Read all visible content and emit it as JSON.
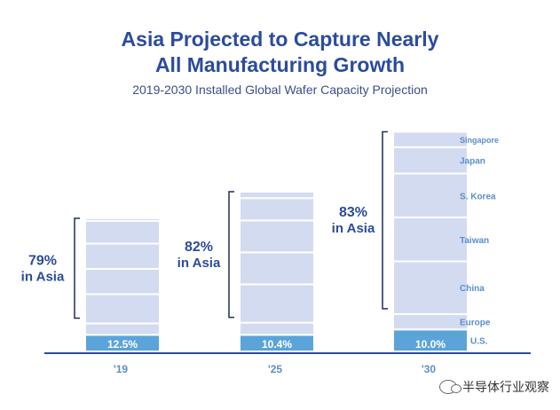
{
  "title_line1": "Asia Projected to Capture Nearly",
  "title_line2": "All Manufacturing Growth",
  "subtitle": "2019-2030 Installed Global Wafer Capacity Projection",
  "watermark": "半导体行业观察",
  "colors": {
    "segment": "#d3dbf1",
    "us": "#5ba4d9",
    "bracket": "#1f2f5a",
    "asia_text": "#2b4c9b",
    "axis": "#2b4c9b",
    "label": "#5b8fc7",
    "divider": "#ffffff"
  },
  "chart_data": {
    "type": "bar",
    "categories": [
      "'19",
      "'25",
      "'30"
    ],
    "stack_order": [
      "U.S.",
      "Europe",
      "China",
      "Taiwan",
      "S. Korea",
      "Japan",
      "Singapore"
    ],
    "segment_labels": [
      "Singapore",
      "Japan",
      "S. Korea",
      "Taiwan",
      "China",
      "Europe",
      "U.S."
    ],
    "us_labels": [
      "12.5%",
      "10.4%",
      "10.0%"
    ],
    "asia_pct": [
      "79%",
      "82%",
      "83%"
    ],
    "asia_suffix": "in Asia",
    "us_share": [
      12.5,
      10.4,
      10.0
    ],
    "asia_share": [
      79,
      82,
      83
    ],
    "series": [
      {
        "name": "U.S.",
        "values": [
          12.5,
          10.4,
          10.0
        ]
      },
      {
        "name": "Europe",
        "values": [
          8.5,
          7.6,
          7.0
        ]
      },
      {
        "name": "China",
        "values": [
          22,
          24,
          24
        ]
      },
      {
        "name": "Taiwan",
        "values": [
          19,
          20,
          20
        ]
      },
      {
        "name": "S. Korea",
        "values": [
          19,
          20,
          20
        ]
      },
      {
        "name": "Japan",
        "values": [
          17,
          14,
          12
        ]
      },
      {
        "name": "Singapore",
        "values": [
          2,
          4,
          7
        ]
      }
    ],
    "bar_totals": [
      100,
      120,
      165
    ]
  }
}
